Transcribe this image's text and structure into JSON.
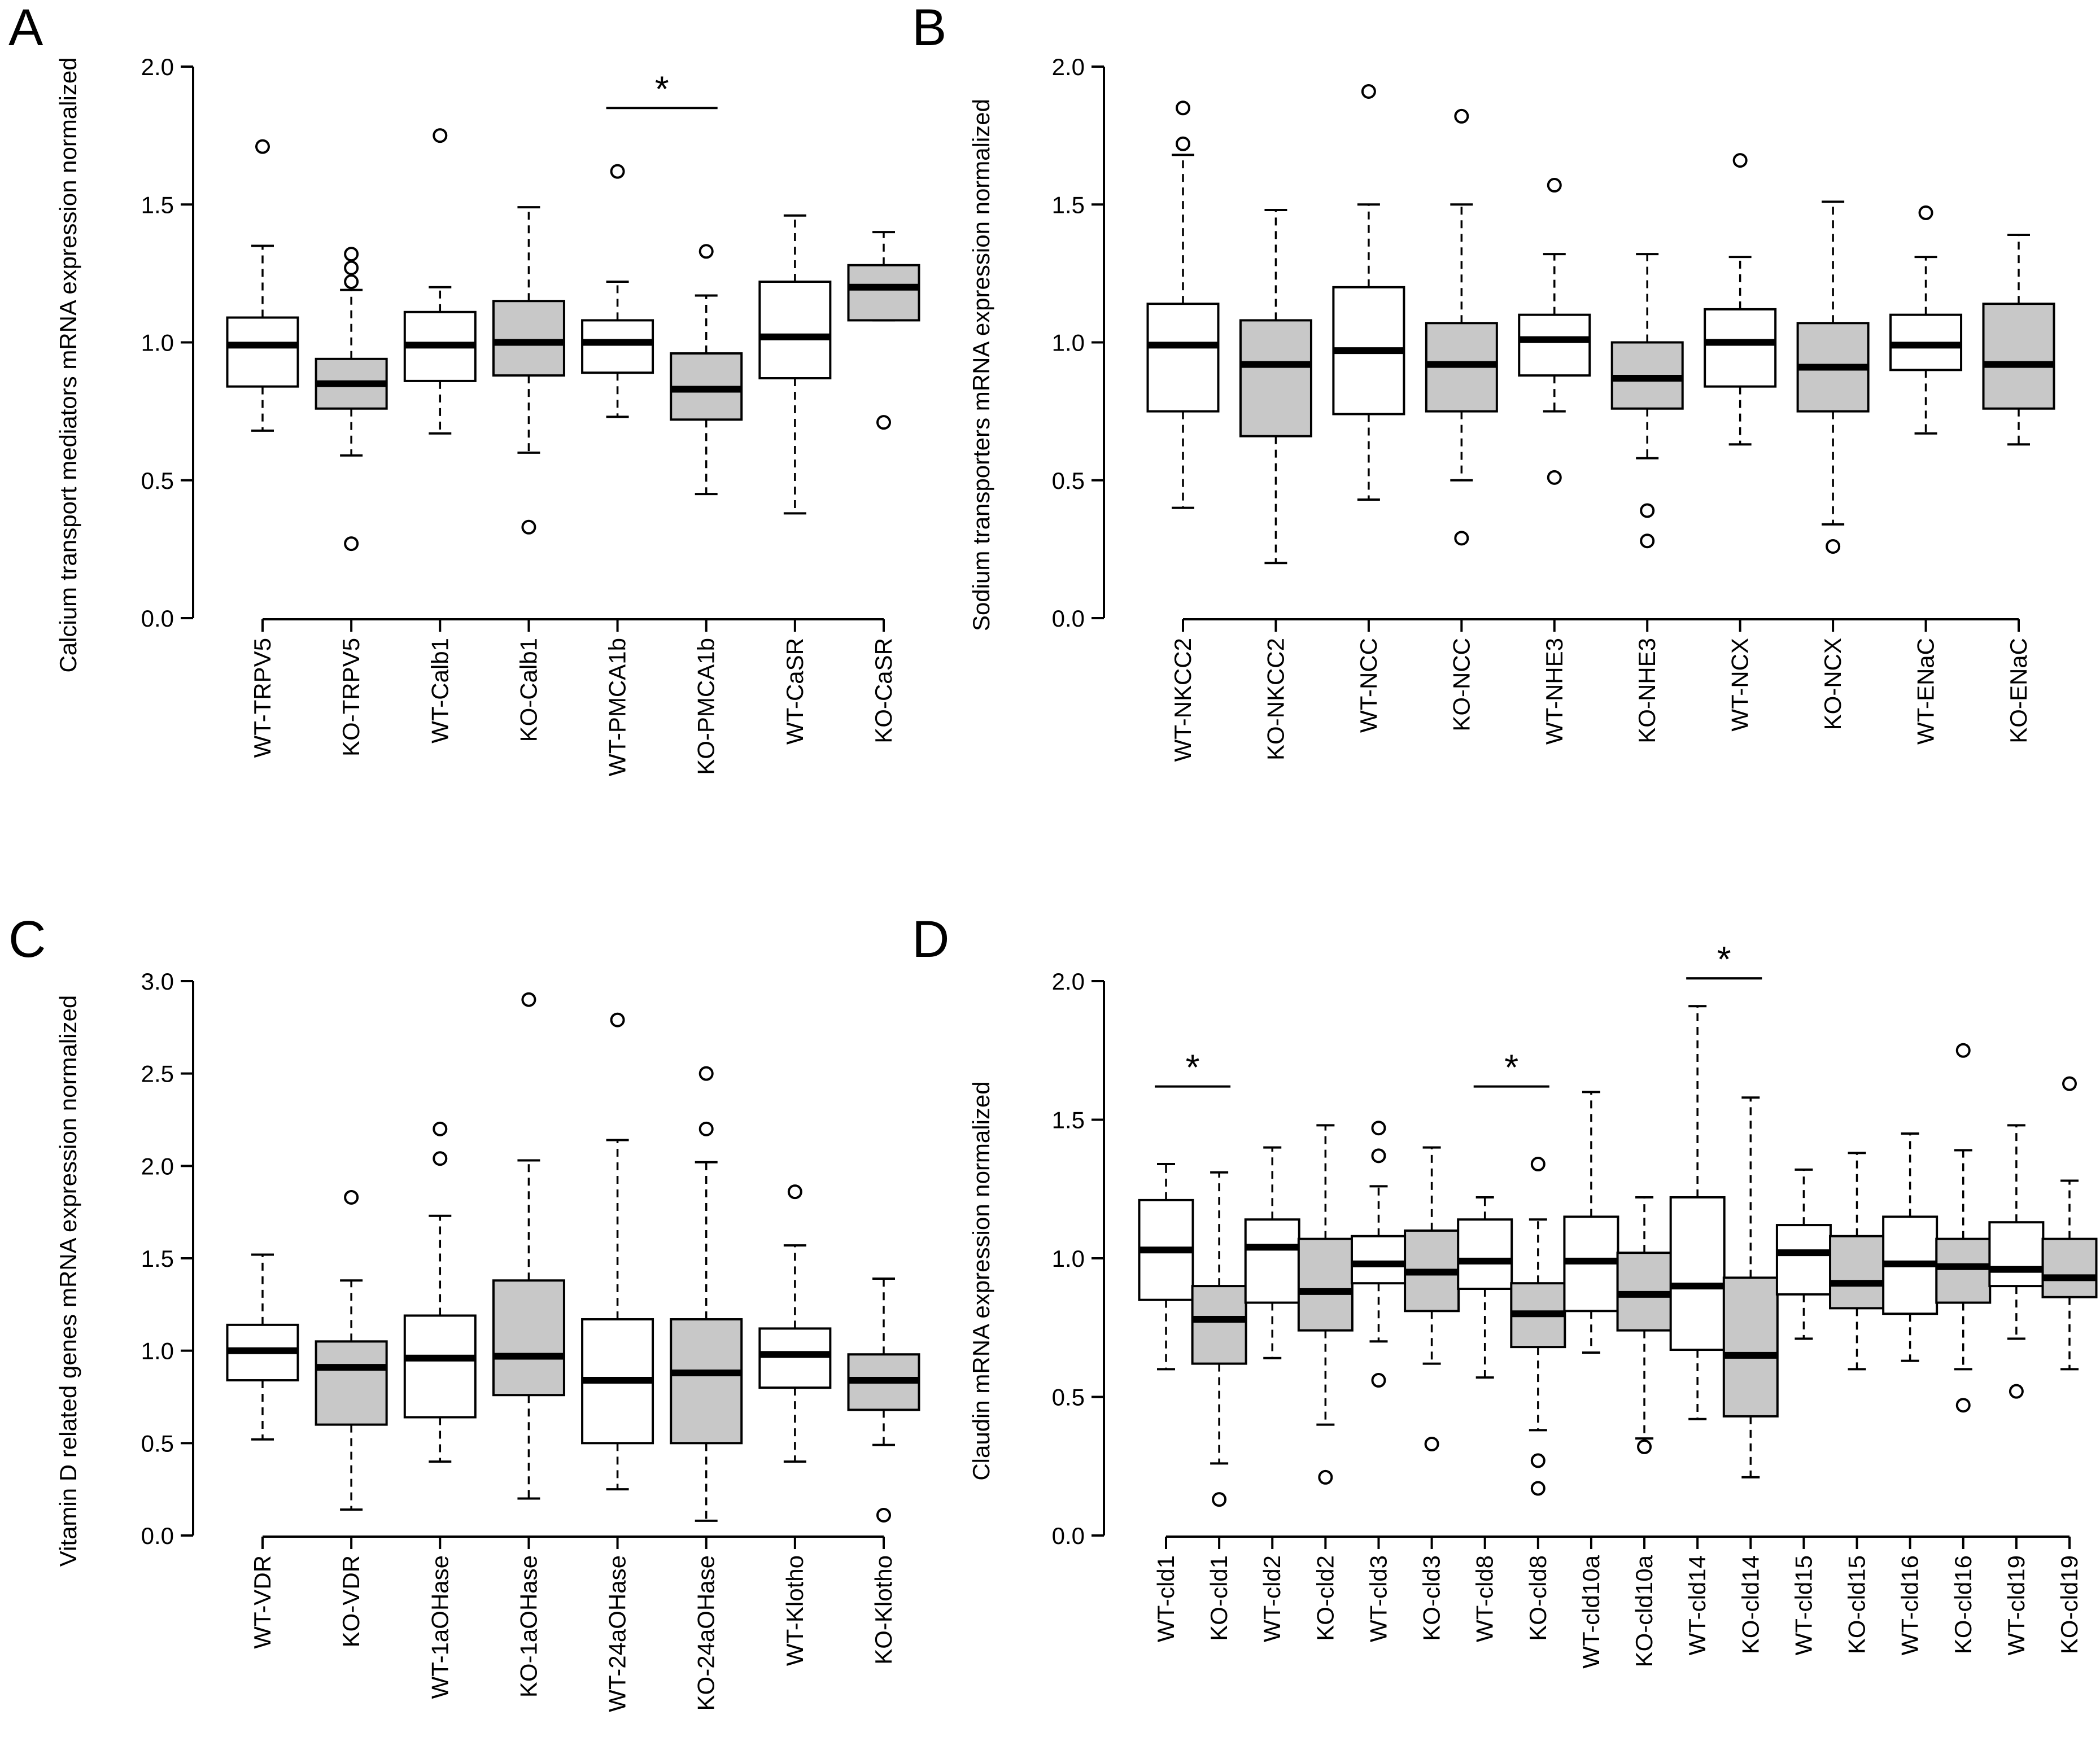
{
  "figure": {
    "panels": [
      "A",
      "B",
      "C",
      "D"
    ]
  },
  "chart_data": [
    {
      "panel": "A",
      "type": "box",
      "ylabel": "Calcium transport mediators mRNA expression normalized",
      "ylim": [
        0,
        2
      ],
      "yticks": [
        "0.0",
        "0.5",
        "1.0",
        "1.5",
        "2.0"
      ],
      "boxes": [
        {
          "label": "WT-TRPV5",
          "group": "WT",
          "q1": 0.84,
          "median": 0.99,
          "q3": 1.09,
          "lo": 0.68,
          "hi": 1.35,
          "outliers": [
            1.71
          ]
        },
        {
          "label": "KO-TRPV5",
          "group": "KO",
          "q1": 0.76,
          "median": 0.85,
          "q3": 0.94,
          "lo": 0.59,
          "hi": 1.19,
          "outliers": [
            1.32,
            1.27,
            1.22,
            0.27
          ]
        },
        {
          "label": "WT-Calb1",
          "group": "WT",
          "q1": 0.86,
          "median": 0.99,
          "q3": 1.11,
          "lo": 0.67,
          "hi": 1.2,
          "outliers": [
            1.75
          ]
        },
        {
          "label": "KO-Calb1",
          "group": "KO",
          "q1": 0.88,
          "median": 1.0,
          "q3": 1.15,
          "lo": 0.6,
          "hi": 1.49,
          "outliers": [
            0.33
          ]
        },
        {
          "label": "WT-PMCA1b",
          "group": "WT",
          "q1": 0.89,
          "median": 1.0,
          "q3": 1.08,
          "lo": 0.73,
          "hi": 1.22,
          "outliers": [
            1.62
          ]
        },
        {
          "label": "KO-PMCA1b",
          "group": "KO",
          "q1": 0.72,
          "median": 0.83,
          "q3": 0.96,
          "lo": 0.45,
          "hi": 1.17,
          "outliers": [
            1.33
          ]
        },
        {
          "label": "WT-CaSR",
          "group": "WT",
          "q1": 0.87,
          "median": 1.02,
          "q3": 1.22,
          "lo": 0.38,
          "hi": 1.46,
          "outliers": []
        },
        {
          "label": "KO-CaSR",
          "group": "KO",
          "q1": 1.08,
          "median": 1.2,
          "q3": 1.28,
          "lo": 1.08,
          "hi": 1.4,
          "outliers": [
            0.71
          ]
        }
      ],
      "significance": [
        {
          "from": 4,
          "to": 5,
          "y": 1.85,
          "label": "*"
        }
      ]
    },
    {
      "panel": "B",
      "type": "box",
      "ylabel": "Sodium transporters mRNA expression normalized",
      "ylim": [
        0,
        2
      ],
      "yticks": [
        "0.0",
        "0.5",
        "1.0",
        "1.5",
        "2.0"
      ],
      "boxes": [
        {
          "label": "WT-NKCC2",
          "group": "WT",
          "q1": 0.75,
          "median": 0.99,
          "q3": 1.14,
          "lo": 0.4,
          "hi": 1.68,
          "outliers": [
            1.85,
            1.72
          ]
        },
        {
          "label": "KO-NKCC2",
          "group": "KO",
          "q1": 0.66,
          "median": 0.92,
          "q3": 1.08,
          "lo": 0.2,
          "hi": 1.48,
          "outliers": []
        },
        {
          "label": "WT-NCC",
          "group": "WT",
          "q1": 0.74,
          "median": 0.97,
          "q3": 1.2,
          "lo": 0.43,
          "hi": 1.5,
          "outliers": [
            1.91
          ]
        },
        {
          "label": "KO-NCC",
          "group": "KO",
          "q1": 0.75,
          "median": 0.92,
          "q3": 1.07,
          "lo": 0.5,
          "hi": 1.5,
          "outliers": [
            1.82,
            0.29
          ]
        },
        {
          "label": "WT-NHE3",
          "group": "WT",
          "q1": 0.88,
          "median": 1.01,
          "q3": 1.1,
          "lo": 0.75,
          "hi": 1.32,
          "outliers": [
            1.57,
            0.51
          ]
        },
        {
          "label": "KO-NHE3",
          "group": "KO",
          "q1": 0.76,
          "median": 0.87,
          "q3": 1.0,
          "lo": 0.58,
          "hi": 1.32,
          "outliers": [
            0.39,
            0.28
          ]
        },
        {
          "label": "WT-NCX",
          "group": "WT",
          "q1": 0.84,
          "median": 1.0,
          "q3": 1.12,
          "lo": 0.63,
          "hi": 1.31,
          "outliers": [
            1.66
          ]
        },
        {
          "label": "KO-NCX",
          "group": "KO",
          "q1": 0.75,
          "median": 0.91,
          "q3": 1.07,
          "lo": 0.34,
          "hi": 1.51,
          "outliers": [
            0.26
          ]
        },
        {
          "label": "WT-ENaC",
          "group": "WT",
          "q1": 0.9,
          "median": 0.99,
          "q3": 1.1,
          "lo": 0.67,
          "hi": 1.31,
          "outliers": [
            1.47
          ]
        },
        {
          "label": "KO-ENaC",
          "group": "KO",
          "q1": 0.76,
          "median": 0.92,
          "q3": 1.14,
          "lo": 0.63,
          "hi": 1.39,
          "outliers": []
        }
      ],
      "significance": []
    },
    {
      "panel": "C",
      "type": "box",
      "ylabel": "Vitamin D related genes mRNA expression normalized",
      "ylim": [
        0,
        3
      ],
      "yticks": [
        "0.0",
        "0.5",
        "1.0",
        "1.5",
        "2.0",
        "2.5",
        "3.0"
      ],
      "boxes": [
        {
          "label": "WT-VDR",
          "group": "WT",
          "q1": 0.84,
          "median": 1.0,
          "q3": 1.14,
          "lo": 0.52,
          "hi": 1.52,
          "outliers": []
        },
        {
          "label": "KO-VDR",
          "group": "KO",
          "q1": 0.6,
          "median": 0.91,
          "q3": 1.05,
          "lo": 0.14,
          "hi": 1.38,
          "outliers": [
            1.83
          ]
        },
        {
          "label": "WT-1aOHase",
          "group": "WT",
          "q1": 0.64,
          "median": 0.96,
          "q3": 1.19,
          "lo": 0.4,
          "hi": 1.73,
          "outliers": [
            2.2,
            2.04
          ]
        },
        {
          "label": "KO-1aOHase",
          "group": "KO",
          "q1": 0.76,
          "median": 0.97,
          "q3": 1.38,
          "lo": 0.2,
          "hi": 2.03,
          "outliers": [
            2.9
          ]
        },
        {
          "label": "WT-24aOHase",
          "group": "WT",
          "q1": 0.5,
          "median": 0.84,
          "q3": 1.17,
          "lo": 0.25,
          "hi": 2.14,
          "outliers": [
            2.79
          ]
        },
        {
          "label": "KO-24aOHase",
          "group": "KO",
          "q1": 0.5,
          "median": 0.88,
          "q3": 1.17,
          "lo": 0.08,
          "hi": 2.02,
          "outliers": [
            2.5,
            2.2
          ]
        },
        {
          "label": "WT-Klotho",
          "group": "WT",
          "q1": 0.8,
          "median": 0.98,
          "q3": 1.12,
          "lo": 0.4,
          "hi": 1.57,
          "outliers": [
            1.86
          ]
        },
        {
          "label": "KO-Klotho",
          "group": "KO",
          "q1": 0.68,
          "median": 0.84,
          "q3": 0.98,
          "lo": 0.49,
          "hi": 1.39,
          "outliers": [
            0.11
          ]
        }
      ],
      "significance": []
    },
    {
      "panel": "D",
      "type": "box",
      "ylabel": "Claudin mRNA expression normalized",
      "ylim": [
        0,
        2
      ],
      "yticks": [
        "0.0",
        "0.5",
        "1.0",
        "1.5",
        "2.0"
      ],
      "boxes": [
        {
          "label": "WT-cld1",
          "group": "WT",
          "q1": 0.85,
          "median": 1.03,
          "q3": 1.21,
          "lo": 0.6,
          "hi": 1.34,
          "outliers": []
        },
        {
          "label": "KO-cld1",
          "group": "KO",
          "q1": 0.62,
          "median": 0.78,
          "q3": 0.9,
          "lo": 0.26,
          "hi": 1.31,
          "outliers": [
            0.13
          ]
        },
        {
          "label": "WT-cld2",
          "group": "WT",
          "q1": 0.84,
          "median": 1.04,
          "q3": 1.14,
          "lo": 0.64,
          "hi": 1.4,
          "outliers": []
        },
        {
          "label": "KO-cld2",
          "group": "KO",
          "q1": 0.74,
          "median": 0.88,
          "q3": 1.07,
          "lo": 0.4,
          "hi": 1.48,
          "outliers": [
            0.21
          ]
        },
        {
          "label": "WT-cld3",
          "group": "WT",
          "q1": 0.91,
          "median": 0.98,
          "q3": 1.08,
          "lo": 0.7,
          "hi": 1.26,
          "outliers": [
            1.47,
            1.37,
            0.56
          ]
        },
        {
          "label": "KO-cld3",
          "group": "KO",
          "q1": 0.81,
          "median": 0.95,
          "q3": 1.1,
          "lo": 0.62,
          "hi": 1.4,
          "outliers": [
            0.33
          ]
        },
        {
          "label": "WT-cld8",
          "group": "WT",
          "q1": 0.89,
          "median": 0.99,
          "q3": 1.14,
          "lo": 0.57,
          "hi": 1.22,
          "outliers": []
        },
        {
          "label": "KO-cld8",
          "group": "KO",
          "q1": 0.68,
          "median": 0.8,
          "q3": 0.91,
          "lo": 0.38,
          "hi": 1.14,
          "outliers": [
            1.34,
            0.27,
            0.17
          ]
        },
        {
          "label": "WT-cld10a",
          "group": "WT",
          "q1": 0.81,
          "median": 0.99,
          "q3": 1.15,
          "lo": 0.66,
          "hi": 1.6,
          "outliers": []
        },
        {
          "label": "KO-cld10a",
          "group": "KO",
          "q1": 0.74,
          "median": 0.87,
          "q3": 1.02,
          "lo": 0.35,
          "hi": 1.22,
          "outliers": [
            0.32
          ]
        },
        {
          "label": "WT-cld14",
          "group": "WT",
          "q1": 0.67,
          "median": 0.9,
          "q3": 1.22,
          "lo": 0.42,
          "hi": 1.91,
          "outliers": []
        },
        {
          "label": "KO-cld14",
          "group": "KO",
          "q1": 0.43,
          "median": 0.65,
          "q3": 0.93,
          "lo": 0.21,
          "hi": 1.58,
          "outliers": []
        },
        {
          "label": "WT-cld15",
          "group": "WT",
          "q1": 0.87,
          "median": 1.02,
          "q3": 1.12,
          "lo": 0.71,
          "hi": 1.32,
          "outliers": []
        },
        {
          "label": "KO-cld15",
          "group": "KO",
          "q1": 0.82,
          "median": 0.91,
          "q3": 1.08,
          "lo": 0.6,
          "hi": 1.38,
          "outliers": []
        },
        {
          "label": "WT-cld16",
          "group": "WT",
          "q1": 0.8,
          "median": 0.98,
          "q3": 1.15,
          "lo": 0.63,
          "hi": 1.45,
          "outliers": []
        },
        {
          "label": "KO-cld16",
          "group": "KO",
          "q1": 0.84,
          "median": 0.97,
          "q3": 1.07,
          "lo": 0.6,
          "hi": 1.39,
          "outliers": [
            1.75,
            0.47
          ]
        },
        {
          "label": "WT-cld19",
          "group": "WT",
          "q1": 0.9,
          "median": 0.96,
          "q3": 1.13,
          "lo": 0.71,
          "hi": 1.48,
          "outliers": [
            0.52
          ]
        },
        {
          "label": "KO-cld19",
          "group": "KO",
          "q1": 0.86,
          "median": 0.93,
          "q3": 1.07,
          "lo": 0.6,
          "hi": 1.28,
          "outliers": [
            1.63
          ]
        }
      ],
      "significance": [
        {
          "from": 0,
          "to": 1,
          "y": 1.62,
          "label": "*"
        },
        {
          "from": 6,
          "to": 7,
          "y": 1.62,
          "label": "*"
        },
        {
          "from": 10,
          "to": 11,
          "y": 2.01,
          "label": "*"
        }
      ]
    }
  ],
  "colors": {
    "wt_fill": "#ffffff",
    "ko_fill": "#c8c8c8",
    "stroke": "#000000"
  }
}
